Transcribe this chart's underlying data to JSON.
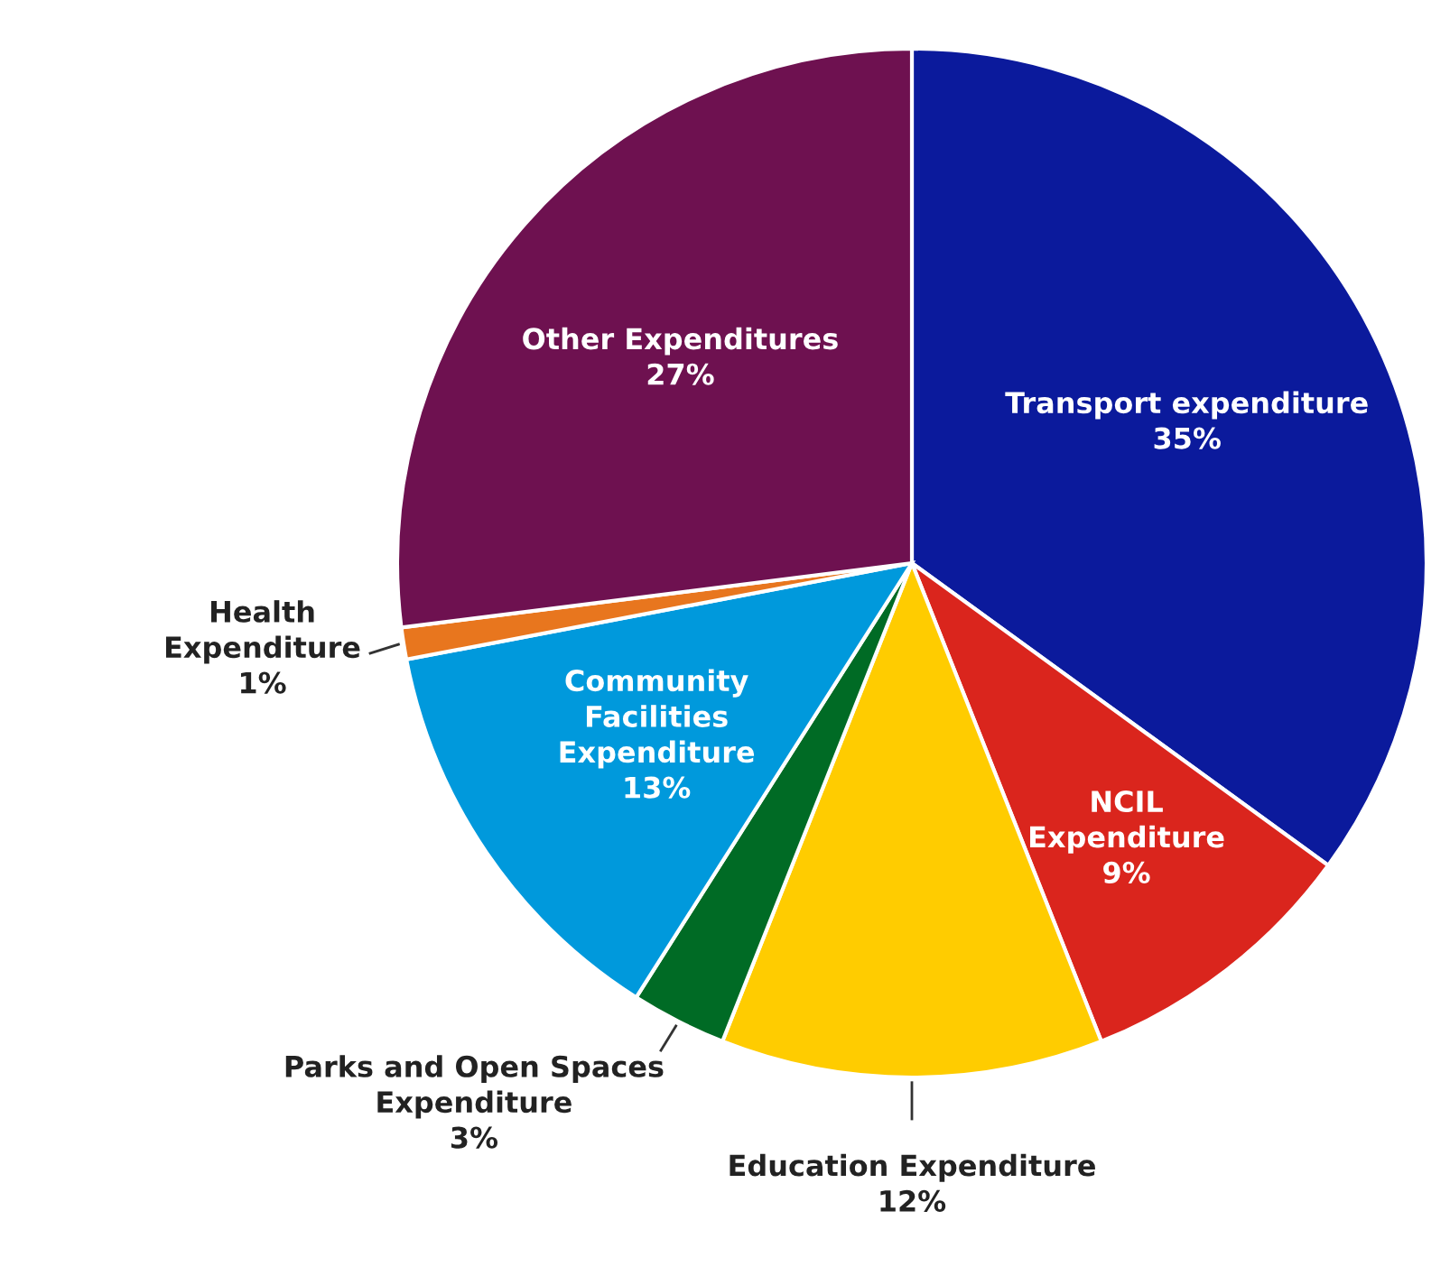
{
  "chart_data": {
    "type": "pie",
    "categories": [
      "Transport expenditure",
      "NCIL\nExpenditure",
      "Education Expenditure",
      "Parks and Open Spaces\nExpenditure",
      "Community\nFacilities\nExpenditure",
      "Health\nExpenditure",
      "Other Expenditures"
    ],
    "values": [
      35,
      9,
      12,
      3,
      13,
      1,
      27
    ],
    "value_labels": [
      "35%",
      "9%",
      "12%",
      "3%",
      "13%",
      "1%",
      "27%"
    ],
    "colors": [
      "#0b1a9c",
      "#da251d",
      "#ffcc00",
      "#006b25",
      "#0099dc",
      "#e8761e",
      "#6e1150"
    ]
  }
}
